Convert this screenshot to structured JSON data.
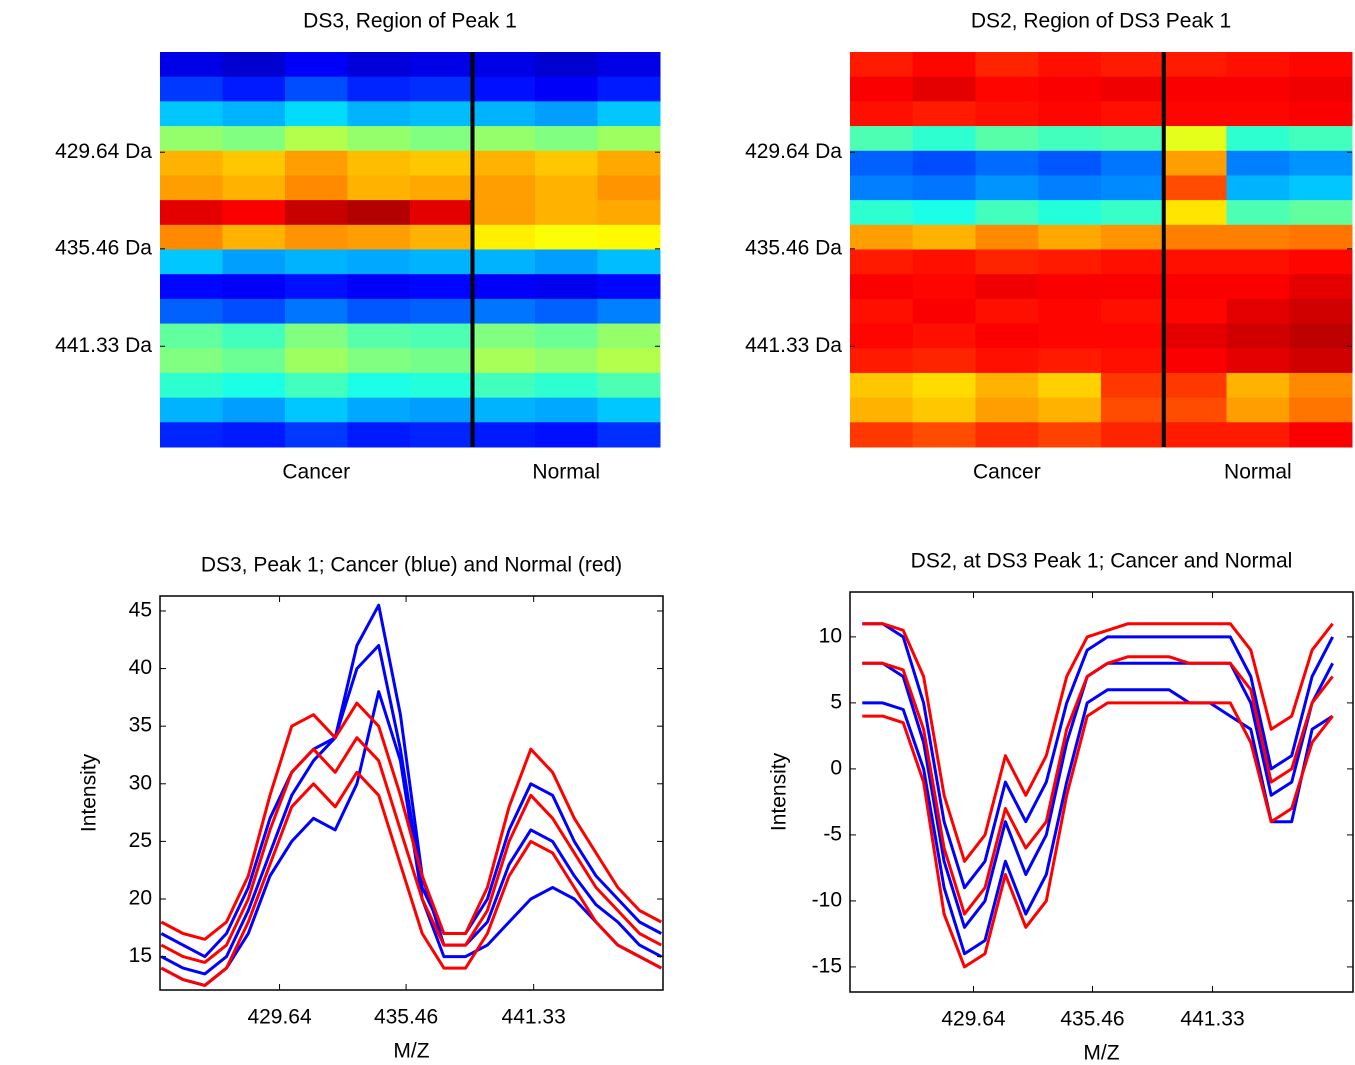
{
  "chart_data": [
    {
      "type": "heatmap",
      "title": "DS3, Region of Peak 1",
      "ylim": [
        447.4,
        423.6
      ],
      "yticks": [
        {
          "value": 429.64,
          "label": "429.64 Da"
        },
        {
          "value": 435.46,
          "label": "435.46 Da"
        },
        {
          "value": 441.33,
          "label": "441.33 Da"
        }
      ],
      "series": [
        {
          "name": "Cancer",
          "values": [
            [
              0.1,
              0.18,
              0.32,
              0.52,
              0.7,
              0.72,
              0.9,
              0.74,
              0.32,
              0.13,
              0.22,
              0.47,
              0.5,
              0.42,
              0.3,
              0.16
            ],
            [
              0.08,
              0.15,
              0.3,
              0.5,
              0.68,
              0.7,
              0.88,
              0.7,
              0.28,
              0.12,
              0.2,
              0.44,
              0.48,
              0.4,
              0.28,
              0.15
            ],
            [
              0.12,
              0.2,
              0.34,
              0.55,
              0.72,
              0.74,
              0.93,
              0.73,
              0.3,
              0.14,
              0.24,
              0.5,
              0.53,
              0.44,
              0.32,
              0.18
            ],
            [
              0.09,
              0.16,
              0.3,
              0.52,
              0.69,
              0.7,
              0.95,
              0.72,
              0.29,
              0.12,
              0.21,
              0.46,
              0.5,
              0.4,
              0.29,
              0.15
            ],
            [
              0.1,
              0.17,
              0.31,
              0.5,
              0.68,
              0.71,
              0.9,
              0.7,
              0.3,
              0.13,
              0.22,
              0.45,
              0.49,
              0.41,
              0.28,
              0.16
            ]
          ]
        },
        {
          "name": "Normal",
          "values": [
            [
              0.1,
              0.14,
              0.3,
              0.52,
              0.7,
              0.72,
              0.72,
              0.64,
              0.3,
              0.12,
              0.24,
              0.5,
              0.54,
              0.44,
              0.3,
              0.15
            ],
            [
              0.08,
              0.12,
              0.28,
              0.5,
              0.68,
              0.7,
              0.7,
              0.62,
              0.28,
              0.11,
              0.22,
              0.48,
              0.52,
              0.42,
              0.29,
              0.14
            ],
            [
              0.1,
              0.15,
              0.32,
              0.53,
              0.71,
              0.73,
              0.71,
              0.63,
              0.31,
              0.13,
              0.25,
              0.52,
              0.55,
              0.45,
              0.32,
              0.17
            ]
          ]
        }
      ]
    },
    {
      "type": "heatmap",
      "title": "DS2, Region of DS3 Peak 1",
      "ylim": [
        447.4,
        423.6
      ],
      "yticks": [
        {
          "value": 429.64,
          "label": "429.64 Da"
        },
        {
          "value": 435.46,
          "label": "435.46 Da"
        },
        {
          "value": 441.33,
          "label": "441.33 Da"
        }
      ],
      "series": [
        {
          "name": "Cancer",
          "values": [
            [
              0.85,
              0.88,
              0.86,
              0.45,
              0.22,
              0.25,
              0.42,
              0.72,
              0.85,
              0.88,
              0.86,
              0.87,
              0.85,
              0.68,
              0.7,
              0.82
            ],
            [
              0.87,
              0.9,
              0.85,
              0.42,
              0.2,
              0.24,
              0.4,
              0.7,
              0.86,
              0.87,
              0.88,
              0.86,
              0.84,
              0.66,
              0.68,
              0.8
            ],
            [
              0.84,
              0.87,
              0.86,
              0.46,
              0.23,
              0.27,
              0.44,
              0.74,
              0.84,
              0.89,
              0.86,
              0.88,
              0.86,
              0.7,
              0.72,
              0.83
            ],
            [
              0.86,
              0.88,
              0.87,
              0.44,
              0.21,
              0.25,
              0.41,
              0.71,
              0.85,
              0.88,
              0.87,
              0.87,
              0.85,
              0.67,
              0.7,
              0.81
            ],
            [
              0.85,
              0.89,
              0.86,
              0.45,
              0.24,
              0.26,
              0.43,
              0.73,
              0.86,
              0.88,
              0.86,
              0.87,
              0.86,
              0.82,
              0.8,
              0.84
            ]
          ]
        },
        {
          "name": "Normal",
          "values": [
            [
              0.85,
              0.88,
              0.87,
              0.6,
              0.72,
              0.8,
              0.65,
              0.75,
              0.86,
              0.88,
              0.87,
              0.9,
              0.88,
              0.82,
              0.8,
              0.85
            ],
            [
              0.86,
              0.88,
              0.87,
              0.42,
              0.25,
              0.3,
              0.45,
              0.75,
              0.86,
              0.88,
              0.9,
              0.92,
              0.9,
              0.7,
              0.72,
              0.85
            ],
            [
              0.87,
              0.89,
              0.88,
              0.44,
              0.27,
              0.32,
              0.47,
              0.76,
              0.87,
              0.9,
              0.92,
              0.94,
              0.92,
              0.74,
              0.76,
              0.88
            ]
          ]
        }
      ]
    },
    {
      "type": "line",
      "title": "DS3, Peak 1; Cancer (blue) and Normal (red)",
      "xlabel": "M/Z",
      "ylabel": "Intensity",
      "xlim": [
        424.14,
        447.28
      ],
      "ylim": [
        12.1,
        46.3
      ],
      "xticks": [
        429.64,
        435.46,
        441.33
      ],
      "yticks": [
        15,
        20,
        25,
        30,
        35,
        40,
        45
      ],
      "x": [
        424.2,
        425.2,
        426.2,
        427.2,
        428.2,
        429.2,
        430.2,
        431.2,
        432.2,
        433.2,
        434.2,
        435.2,
        436.2,
        437.2,
        438.2,
        439.2,
        440.2,
        441.2,
        442.2,
        443.2,
        444.2,
        445.2,
        446.2,
        447.2
      ],
      "series": [
        {
          "color": "#0000ff",
          "values": [
            15,
            14,
            13.5,
            15,
            19,
            24,
            29,
            32,
            34,
            42,
            45.5,
            36,
            22,
            16,
            16,
            18,
            23,
            26,
            25,
            22,
            19.5,
            18,
            16,
            15
          ]
        },
        {
          "color": "#0000ff",
          "values": [
            14,
            13,
            12.5,
            14,
            17,
            22,
            25,
            27,
            26,
            30,
            38,
            32,
            20,
            15,
            15,
            16,
            18,
            20,
            21,
            20,
            18,
            16,
            15,
            14
          ]
        },
        {
          "color": "#0000ff",
          "values": [
            17,
            16,
            15,
            17,
            21,
            27,
            31,
            33,
            34,
            40,
            42,
            33,
            21,
            17,
            17,
            20,
            26,
            30,
            29,
            25,
            22,
            20,
            18,
            17
          ]
        },
        {
          "color": "#ff0000",
          "values": [
            18,
            17,
            16.5,
            18,
            22,
            29,
            35,
            36,
            34,
            37,
            35,
            29,
            22,
            17,
            17,
            21,
            28,
            33,
            31,
            27,
            24,
            21,
            19,
            18
          ]
        },
        {
          "color": "#ff0000",
          "values": [
            16,
            15,
            14.5,
            16,
            20,
            26,
            31,
            33,
            31,
            34,
            32,
            26,
            20,
            16,
            16,
            19,
            25,
            29,
            27,
            24,
            21,
            19,
            17,
            16
          ]
        },
        {
          "color": "#ff0000",
          "values": [
            14,
            13,
            12.5,
            14,
            18,
            23,
            28,
            30,
            28,
            31,
            29,
            23,
            17,
            14,
            14,
            17,
            22,
            25,
            24,
            21,
            18,
            16,
            15,
            14
          ]
        }
      ]
    },
    {
      "type": "line",
      "title": "DS2, at DS3 Peak 1; Cancer and Normal",
      "xlabel": "M/Z",
      "ylabel": "Intensity",
      "xlim": [
        423.6,
        448.2
      ],
      "ylim": [
        -16.9,
        13.4
      ],
      "xticks": [
        429.64,
        435.46,
        441.33
      ],
      "yticks": [
        -15,
        -10,
        -5,
        0,
        5,
        10
      ],
      "x": [
        424.2,
        425.2,
        426.2,
        427.2,
        428.2,
        429.2,
        430.2,
        431.2,
        432.2,
        433.2,
        434.2,
        435.2,
        436.2,
        437.2,
        438.2,
        439.2,
        440.2,
        441.2,
        442.2,
        443.2,
        444.2,
        445.2,
        446.2,
        447.2
      ],
      "series": [
        {
          "color": "#0000ff",
          "values": [
            11,
            11,
            10,
            5,
            -4,
            -9,
            -7,
            -1,
            -4,
            -1,
            5,
            9,
            10,
            10,
            10,
            10,
            10,
            10,
            10,
            7,
            0,
            1,
            7,
            10
          ]
        },
        {
          "color": "#0000ff",
          "values": [
            5,
            5,
            4.5,
            0,
            -9,
            -14,
            -13,
            -7,
            -11,
            -8,
            -1,
            5,
            6,
            6,
            6,
            6,
            5,
            5,
            4,
            3,
            -4,
            -4,
            3,
            4
          ]
        },
        {
          "color": "#0000ff",
          "values": [
            8,
            8,
            7,
            2,
            -7,
            -12,
            -10,
            -4,
            -8,
            -5,
            2,
            7,
            8,
            8,
            8,
            8,
            8,
            8,
            8,
            5,
            -2,
            -1,
            5,
            8
          ]
        },
        {
          "color": "#ff0000",
          "values": [
            11,
            11,
            10.5,
            7,
            -2,
            -7,
            -5,
            1,
            -2,
            1,
            7,
            10,
            10.5,
            11,
            11,
            11,
            11,
            11,
            11,
            9,
            3,
            4,
            9,
            11
          ]
        },
        {
          "color": "#ff0000",
          "values": [
            8,
            8,
            7.5,
            3,
            -6,
            -11,
            -9,
            -3,
            -6,
            -4,
            3,
            7,
            8,
            8.5,
            8.5,
            8.5,
            8,
            8,
            8,
            6,
            -1,
            0,
            5,
            7
          ]
        },
        {
          "color": "#ff0000",
          "values": [
            4,
            4,
            3.5,
            -1,
            -11,
            -15,
            -14,
            -8,
            -12,
            -10,
            -2,
            4,
            5,
            5,
            5,
            5,
            5,
            5,
            5,
            2,
            -4,
            -3,
            2,
            4
          ]
        }
      ]
    }
  ]
}
